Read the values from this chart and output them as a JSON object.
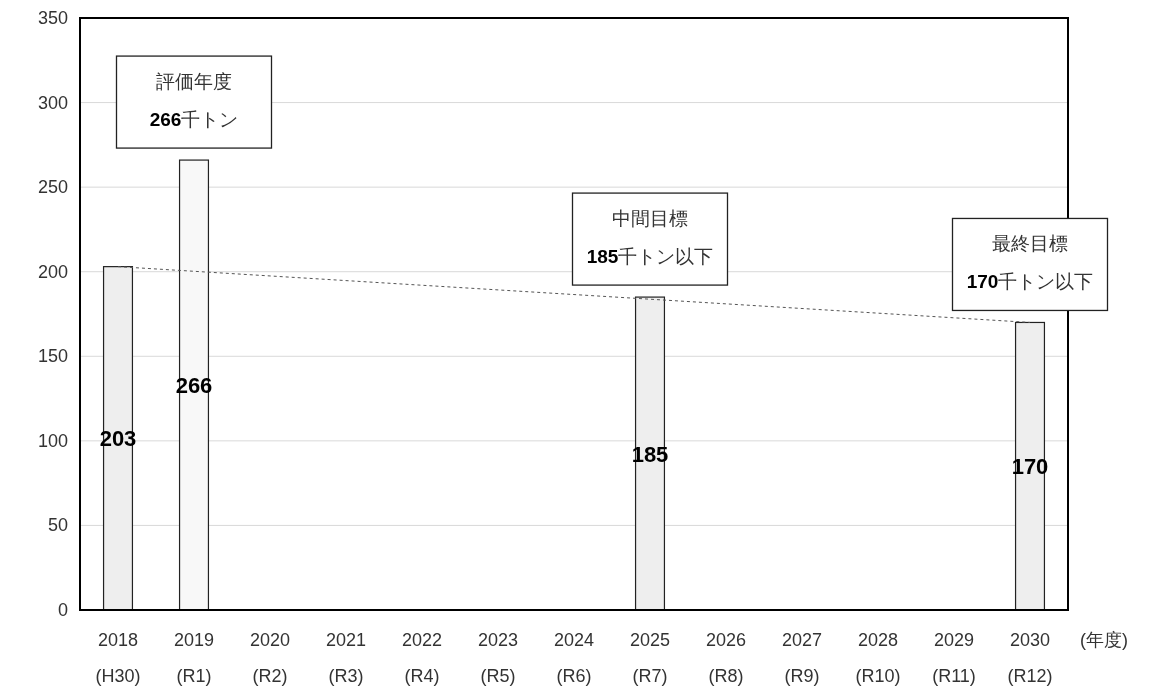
{
  "chart_data": {
    "type": "bar",
    "categories": [
      "2018\n(H30)",
      "2019\n(R1)",
      "2020\n(R2)",
      "2021\n(R3)",
      "2022\n(R4)",
      "2023\n(R5)",
      "2024\n(R6)",
      "2025\n(R7)",
      "2026\n(R8)",
      "2027\n(R9)",
      "2028\n(R10)",
      "2029\n(R11)",
      "2030\n(R12)"
    ],
    "xlabel": "(年度)",
    "series": [
      {
        "colors": [
          "#eeeeee",
          "#f8f8f8",
          null,
          null,
          null,
          null,
          null,
          "#eeeeee",
          null,
          null,
          null,
          null,
          "#eeeeee"
        ],
        "values": [
          203,
          266,
          null,
          null,
          null,
          null,
          null,
          185,
          null,
          null,
          null,
          null,
          170
        ],
        "value_labels": [
          "203",
          "266",
          null,
          null,
          null,
          null,
          null,
          "185",
          null,
          null,
          null,
          null,
          "170"
        ]
      },
      {
        "type": "line",
        "color": "#555555",
        "line_style": "dotted",
        "values": [
          203,
          null,
          null,
          null,
          null,
          null,
          null,
          null,
          null,
          null,
          null,
          null,
          170
        ]
      }
    ],
    "ylim": [
      0,
      350
    ],
    "yticks": [
      0,
      50,
      100,
      150,
      200,
      250,
      300,
      350
    ],
    "grid": "y",
    "annotations": [
      {
        "text": "評価年度\n266千トン",
        "x": "2019\n(R1)",
        "y": 266
      },
      {
        "text": "中間目標\n185千トン以下",
        "x": "2025\n(R7)",
        "y": 185
      },
      {
        "text": "最終目標\n170千トン以下",
        "x": "2030\n(R12)",
        "y": 170
      }
    ]
  }
}
